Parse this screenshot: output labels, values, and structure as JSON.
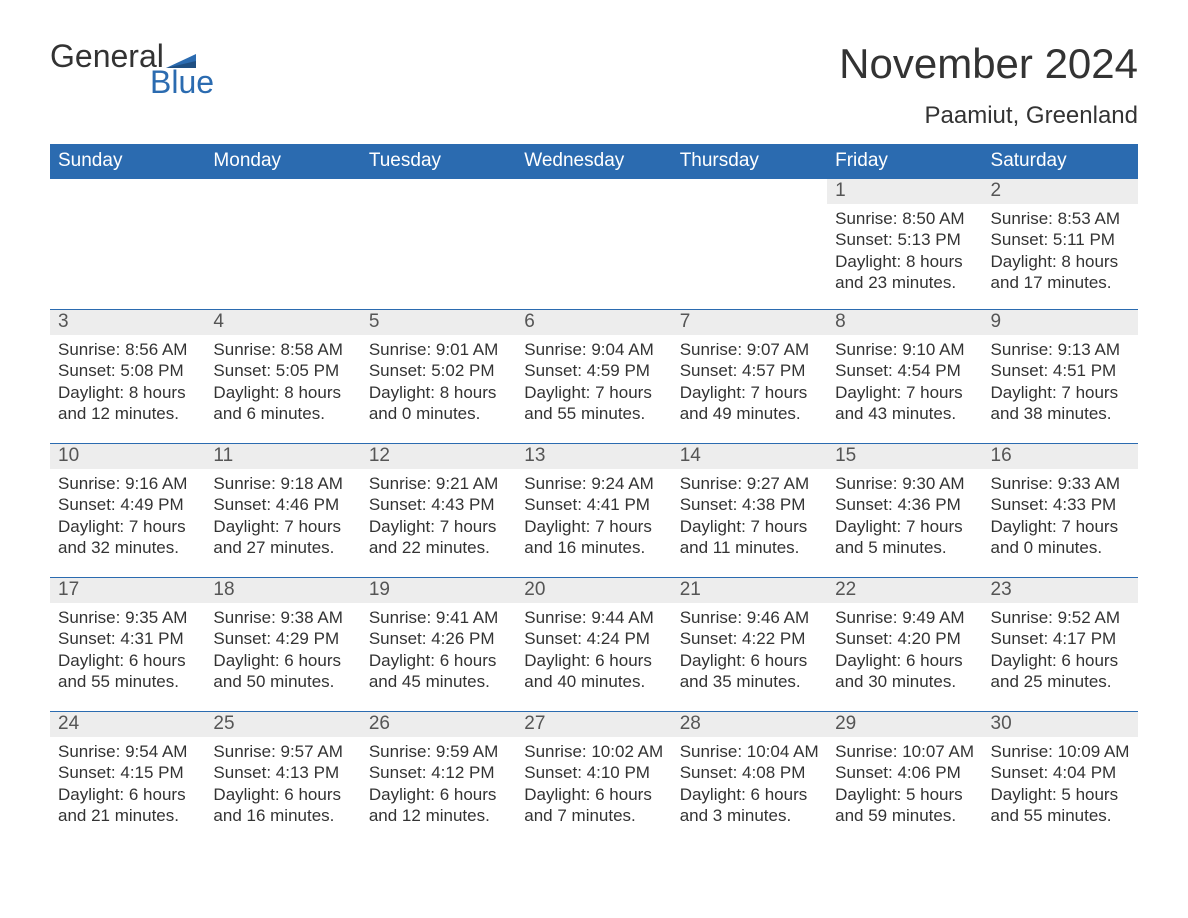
{
  "brand": {
    "general": "General",
    "blue": "Blue",
    "accent": "#2b6bb0"
  },
  "title": "November 2024",
  "location": "Paamiut, Greenland",
  "weekdays": [
    "Sunday",
    "Monday",
    "Tuesday",
    "Wednesday",
    "Thursday",
    "Friday",
    "Saturday"
  ],
  "style": {
    "header_bg": "#2b6bb0",
    "header_text": "#ffffff",
    "daynum_bg": "#ededed",
    "daynum_text": "#555555",
    "body_text": "#333333",
    "background": "#ffffff",
    "week_border": "#2b6bb0",
    "title_fontsize": 42,
    "location_fontsize": 24,
    "weekday_fontsize": 19,
    "daynum_fontsize": 19,
    "body_fontsize": 17
  },
  "weeks": [
    [
      {
        "n": "",
        "sunrise": "",
        "sunset": "",
        "daylight1": "",
        "daylight2": ""
      },
      {
        "n": "",
        "sunrise": "",
        "sunset": "",
        "daylight1": "",
        "daylight2": ""
      },
      {
        "n": "",
        "sunrise": "",
        "sunset": "",
        "daylight1": "",
        "daylight2": ""
      },
      {
        "n": "",
        "sunrise": "",
        "sunset": "",
        "daylight1": "",
        "daylight2": ""
      },
      {
        "n": "",
        "sunrise": "",
        "sunset": "",
        "daylight1": "",
        "daylight2": ""
      },
      {
        "n": "1",
        "sunrise": "Sunrise: 8:50 AM",
        "sunset": "Sunset: 5:13 PM",
        "daylight1": "Daylight: 8 hours",
        "daylight2": "and 23 minutes."
      },
      {
        "n": "2",
        "sunrise": "Sunrise: 8:53 AM",
        "sunset": "Sunset: 5:11 PM",
        "daylight1": "Daylight: 8 hours",
        "daylight2": "and 17 minutes."
      }
    ],
    [
      {
        "n": "3",
        "sunrise": "Sunrise: 8:56 AM",
        "sunset": "Sunset: 5:08 PM",
        "daylight1": "Daylight: 8 hours",
        "daylight2": "and 12 minutes."
      },
      {
        "n": "4",
        "sunrise": "Sunrise: 8:58 AM",
        "sunset": "Sunset: 5:05 PM",
        "daylight1": "Daylight: 8 hours",
        "daylight2": "and 6 minutes."
      },
      {
        "n": "5",
        "sunrise": "Sunrise: 9:01 AM",
        "sunset": "Sunset: 5:02 PM",
        "daylight1": "Daylight: 8 hours",
        "daylight2": "and 0 minutes."
      },
      {
        "n": "6",
        "sunrise": "Sunrise: 9:04 AM",
        "sunset": "Sunset: 4:59 PM",
        "daylight1": "Daylight: 7 hours",
        "daylight2": "and 55 minutes."
      },
      {
        "n": "7",
        "sunrise": "Sunrise: 9:07 AM",
        "sunset": "Sunset: 4:57 PM",
        "daylight1": "Daylight: 7 hours",
        "daylight2": "and 49 minutes."
      },
      {
        "n": "8",
        "sunrise": "Sunrise: 9:10 AM",
        "sunset": "Sunset: 4:54 PM",
        "daylight1": "Daylight: 7 hours",
        "daylight2": "and 43 minutes."
      },
      {
        "n": "9",
        "sunrise": "Sunrise: 9:13 AM",
        "sunset": "Sunset: 4:51 PM",
        "daylight1": "Daylight: 7 hours",
        "daylight2": "and 38 minutes."
      }
    ],
    [
      {
        "n": "10",
        "sunrise": "Sunrise: 9:16 AM",
        "sunset": "Sunset: 4:49 PM",
        "daylight1": "Daylight: 7 hours",
        "daylight2": "and 32 minutes."
      },
      {
        "n": "11",
        "sunrise": "Sunrise: 9:18 AM",
        "sunset": "Sunset: 4:46 PM",
        "daylight1": "Daylight: 7 hours",
        "daylight2": "and 27 minutes."
      },
      {
        "n": "12",
        "sunrise": "Sunrise: 9:21 AM",
        "sunset": "Sunset: 4:43 PM",
        "daylight1": "Daylight: 7 hours",
        "daylight2": "and 22 minutes."
      },
      {
        "n": "13",
        "sunrise": "Sunrise: 9:24 AM",
        "sunset": "Sunset: 4:41 PM",
        "daylight1": "Daylight: 7 hours",
        "daylight2": "and 16 minutes."
      },
      {
        "n": "14",
        "sunrise": "Sunrise: 9:27 AM",
        "sunset": "Sunset: 4:38 PM",
        "daylight1": "Daylight: 7 hours",
        "daylight2": "and 11 minutes."
      },
      {
        "n": "15",
        "sunrise": "Sunrise: 9:30 AM",
        "sunset": "Sunset: 4:36 PM",
        "daylight1": "Daylight: 7 hours",
        "daylight2": "and 5 minutes."
      },
      {
        "n": "16",
        "sunrise": "Sunrise: 9:33 AM",
        "sunset": "Sunset: 4:33 PM",
        "daylight1": "Daylight: 7 hours",
        "daylight2": "and 0 minutes."
      }
    ],
    [
      {
        "n": "17",
        "sunrise": "Sunrise: 9:35 AM",
        "sunset": "Sunset: 4:31 PM",
        "daylight1": "Daylight: 6 hours",
        "daylight2": "and 55 minutes."
      },
      {
        "n": "18",
        "sunrise": "Sunrise: 9:38 AM",
        "sunset": "Sunset: 4:29 PM",
        "daylight1": "Daylight: 6 hours",
        "daylight2": "and 50 minutes."
      },
      {
        "n": "19",
        "sunrise": "Sunrise: 9:41 AM",
        "sunset": "Sunset: 4:26 PM",
        "daylight1": "Daylight: 6 hours",
        "daylight2": "and 45 minutes."
      },
      {
        "n": "20",
        "sunrise": "Sunrise: 9:44 AM",
        "sunset": "Sunset: 4:24 PM",
        "daylight1": "Daylight: 6 hours",
        "daylight2": "and 40 minutes."
      },
      {
        "n": "21",
        "sunrise": "Sunrise: 9:46 AM",
        "sunset": "Sunset: 4:22 PM",
        "daylight1": "Daylight: 6 hours",
        "daylight2": "and 35 minutes."
      },
      {
        "n": "22",
        "sunrise": "Sunrise: 9:49 AM",
        "sunset": "Sunset: 4:20 PM",
        "daylight1": "Daylight: 6 hours",
        "daylight2": "and 30 minutes."
      },
      {
        "n": "23",
        "sunrise": "Sunrise: 9:52 AM",
        "sunset": "Sunset: 4:17 PM",
        "daylight1": "Daylight: 6 hours",
        "daylight2": "and 25 minutes."
      }
    ],
    [
      {
        "n": "24",
        "sunrise": "Sunrise: 9:54 AM",
        "sunset": "Sunset: 4:15 PM",
        "daylight1": "Daylight: 6 hours",
        "daylight2": "and 21 minutes."
      },
      {
        "n": "25",
        "sunrise": "Sunrise: 9:57 AM",
        "sunset": "Sunset: 4:13 PM",
        "daylight1": "Daylight: 6 hours",
        "daylight2": "and 16 minutes."
      },
      {
        "n": "26",
        "sunrise": "Sunrise: 9:59 AM",
        "sunset": "Sunset: 4:12 PM",
        "daylight1": "Daylight: 6 hours",
        "daylight2": "and 12 minutes."
      },
      {
        "n": "27",
        "sunrise": "Sunrise: 10:02 AM",
        "sunset": "Sunset: 4:10 PM",
        "daylight1": "Daylight: 6 hours",
        "daylight2": "and 7 minutes."
      },
      {
        "n": "28",
        "sunrise": "Sunrise: 10:04 AM",
        "sunset": "Sunset: 4:08 PM",
        "daylight1": "Daylight: 6 hours",
        "daylight2": "and 3 minutes."
      },
      {
        "n": "29",
        "sunrise": "Sunrise: 10:07 AM",
        "sunset": "Sunset: 4:06 PM",
        "daylight1": "Daylight: 5 hours",
        "daylight2": "and 59 minutes."
      },
      {
        "n": "30",
        "sunrise": "Sunrise: 10:09 AM",
        "sunset": "Sunset: 4:04 PM",
        "daylight1": "Daylight: 5 hours",
        "daylight2": "and 55 minutes."
      }
    ]
  ]
}
